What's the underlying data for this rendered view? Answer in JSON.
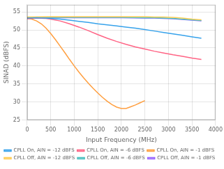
{
  "chart_data": {
    "type": "line",
    "xlabel": "Input Frequency (MHz)",
    "ylabel": "SINAD (dBFS)",
    "xlim": [
      0,
      4000
    ],
    "ylim": [
      25,
      57
    ],
    "xticks": [
      0,
      500,
      1000,
      1500,
      2000,
      2500,
      3000,
      3500,
      4000
    ],
    "yticks": [
      25,
      30,
      35,
      40,
      45,
      50,
      55
    ],
    "grid": true,
    "legend": "lower left",
    "series": [
      {
        "name": "CPLL On, AIN = -12 dBFS",
        "x": [
          0,
          200,
          400,
          500,
          700,
          900,
          1100,
          1300,
          1500,
          1700,
          1900,
          2100,
          2300,
          2500,
          2700,
          2900,
          3100,
          3300,
          3500,
          3700
        ],
        "values": [
          53.3,
          53.4,
          53.3,
          53.2,
          53.0,
          52.7,
          52.4,
          52.1,
          51.7,
          51.4,
          51.1,
          50.8,
          50.5,
          50.1,
          49.7,
          49.3,
          48.9,
          48.5,
          48.1,
          47.7
        ]
      },
      {
        "name": "CPLL On, AIN = -6 dBFS",
        "x": [
          0,
          200,
          400,
          500,
          700,
          900,
          1100,
          1300,
          1500,
          1700,
          1900,
          2100,
          2300,
          2500,
          2700,
          2900,
          3100,
          3300,
          3500,
          3700
        ],
        "values": [
          53.1,
          53.3,
          53.2,
          53.0,
          52.5,
          51.7,
          50.8,
          49.8,
          48.7,
          47.7,
          46.8,
          46.0,
          45.3,
          44.7,
          44.1,
          43.6,
          43.1,
          42.7,
          42.2,
          41.8
        ]
      },
      {
        "name": "CPLL On, AIN = -1 dBFS",
        "x": [
          0,
          100,
          200,
          300,
          400,
          500,
          600,
          700,
          800,
          900,
          1000,
          1100,
          1200,
          1300,
          1400,
          1500,
          1600,
          1700,
          1800,
          1900,
          2000,
          2100,
          2200,
          2300,
          2400,
          2500
        ],
        "values": [
          53.3,
          53.0,
          52.5,
          51.7,
          50.5,
          49.0,
          47.3,
          45.5,
          43.7,
          41.8,
          40.0,
          38.3,
          36.7,
          35.2,
          33.8,
          32.5,
          31.3,
          30.2,
          29.3,
          28.6,
          28.2,
          28.2,
          28.7,
          29.2,
          29.8,
          30.4
        ]
      },
      {
        "name": "CPLL Off, AIN = -12 dBFS",
        "x": [
          0,
          500,
          1000,
          1500,
          2000,
          2500,
          2700,
          2900,
          3100,
          3200,
          3300,
          3500,
          3700
        ],
        "values": [
          53.6,
          53.7,
          53.7,
          53.7,
          53.7,
          53.7,
          53.6,
          53.6,
          53.5,
          53.4,
          53.3,
          53.0,
          52.8
        ]
      },
      {
        "name": "CPLL Off, AIN = -6 dBFS",
        "x": [
          0,
          500,
          1000,
          1500,
          2000,
          2500,
          2700,
          2900,
          3100,
          3200,
          3300,
          3500,
          3700
        ],
        "values": [
          53.4,
          53.5,
          53.5,
          53.5,
          53.5,
          53.4,
          53.4,
          53.3,
          53.2,
          53.1,
          53.0,
          52.8,
          52.6
        ]
      },
      {
        "name": "CPLL Off, AIN = -1 dBFS",
        "x": [
          0,
          500,
          1000,
          1500,
          2000,
          2500,
          2700,
          2900,
          3100,
          3200,
          3300,
          3500,
          3700
        ],
        "values": [
          53.3,
          53.4,
          53.4,
          53.4,
          53.4,
          53.3,
          53.3,
          53.2,
          53.1,
          53.0,
          52.9,
          52.7,
          52.5
        ]
      }
    ]
  }
}
